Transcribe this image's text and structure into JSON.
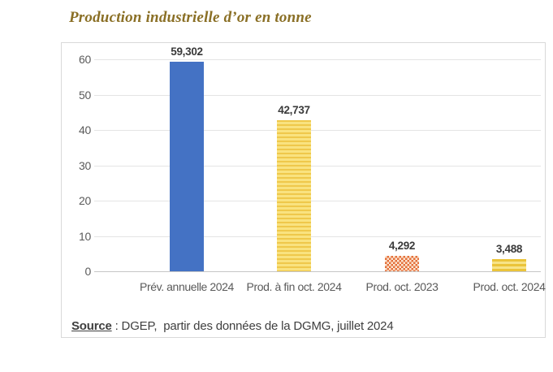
{
  "title": "Production industrielle d’or en tonne",
  "source": {
    "label": "Source",
    "rest": " : DGEP,  partir des données de la DGMG, juillet 2024"
  },
  "chart_data": {
    "type": "bar",
    "title": "Production industrielle d’or en tonne",
    "categories": [
      "Prév. annuelle 2024",
      "Prod. à fin oct. 2024",
      "Prod. oct. 2023",
      "Prod. oct. 2024"
    ],
    "values": [
      59.302,
      42.737,
      4.292,
      3.488
    ],
    "value_labels": [
      "59,302",
      "42,737",
      "4,292",
      "3,488"
    ],
    "xlabel": "",
    "ylabel": "",
    "ylim": [
      0,
      60
    ],
    "yticks": [
      0,
      10,
      20,
      30,
      40,
      50,
      60
    ],
    "grid": "horizontal",
    "legend": "none",
    "bar_styles": [
      {
        "pattern": "solid",
        "color": "#4472C4",
        "alt": "#4472C4",
        "name": "solid-blue"
      },
      {
        "pattern": "hstripes",
        "color": "#EFC84B",
        "alt": "#F9E27F",
        "thick": 2,
        "gap": 3,
        "name": "fine-yellow-stripes"
      },
      {
        "pattern": "checker",
        "color": "#E4703B",
        "alt": "#FBE7D4",
        "size": 5,
        "name": "orange-checker"
      },
      {
        "pattern": "hstripes",
        "color": "#EBC43A",
        "alt": "#F7E387",
        "thick": 3,
        "gap": 3,
        "name": "bold-yellow-stripes"
      }
    ]
  },
  "colors": {
    "title_text": "#8A6F25",
    "axis_text": "#5a5a5a",
    "value_text": "#3a3a3a",
    "source_text": "#3f3f3f",
    "box_border": "#d9d9d9",
    "gridline": "#e4e4e4",
    "baseline": "#c6c6c6"
  }
}
